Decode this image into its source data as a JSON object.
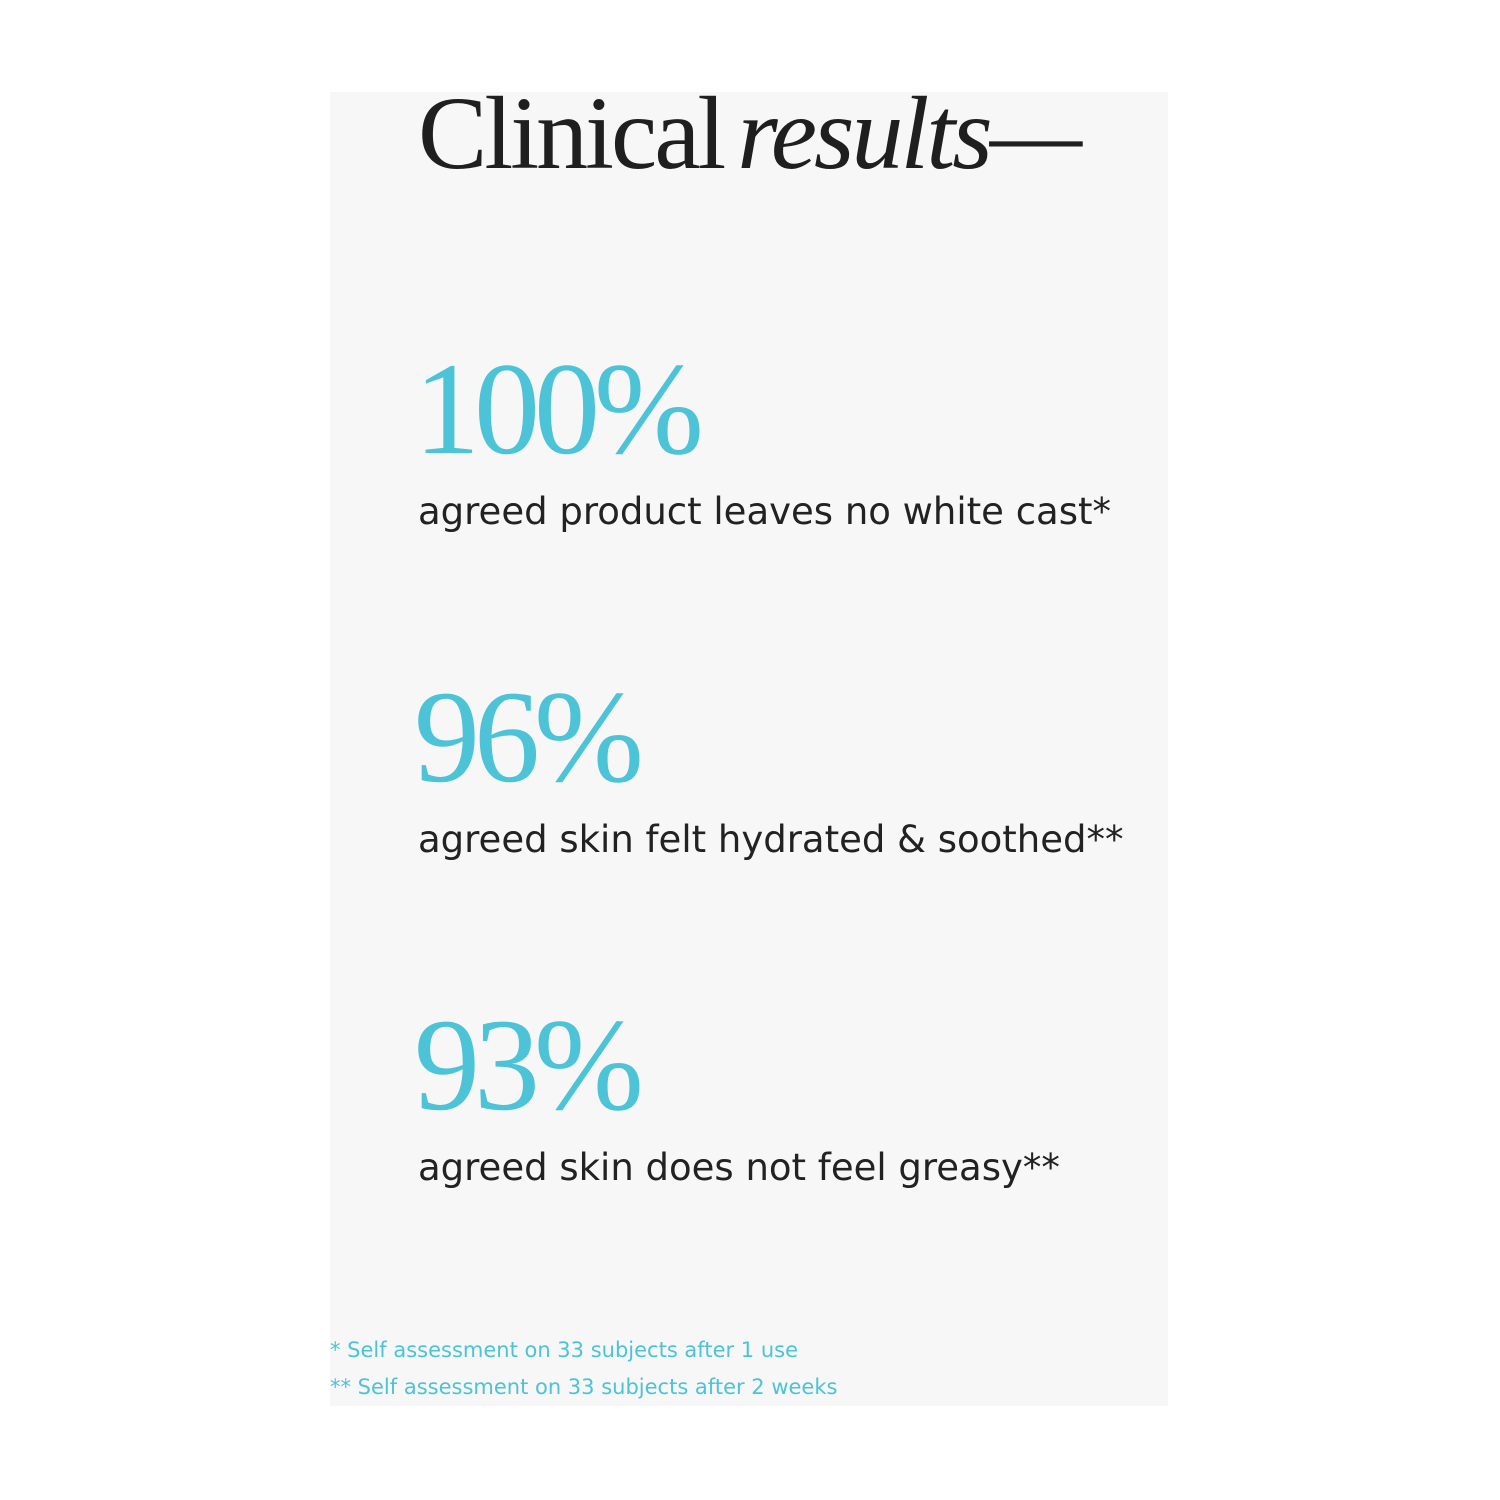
{
  "header": {
    "title_regular": "Clinical",
    "title_italic": "results—"
  },
  "stats": [
    {
      "value": "100%",
      "description": "agreed product leaves no white cast*"
    },
    {
      "value": "96%",
      "description": "agreed skin felt hydrated & soothed**"
    },
    {
      "value": "93%",
      "description": "agreed skin does not feel greasy**"
    }
  ],
  "footnotes": [
    "* Self assessment on 33 subjects after 1 use",
    "** Self assessment on 33 subjects after 2 weeks"
  ]
}
